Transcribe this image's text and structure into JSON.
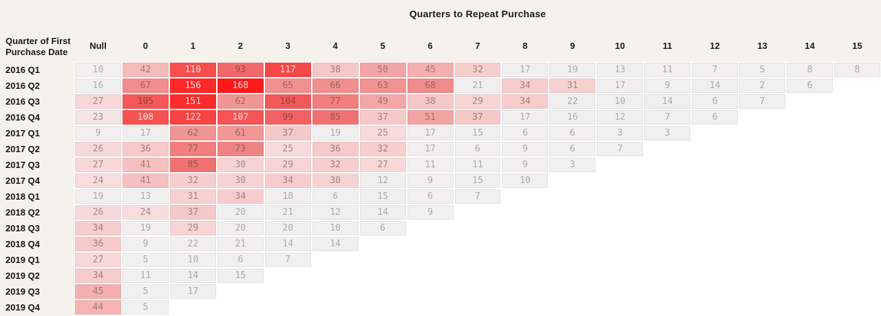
{
  "header": {
    "column_axis_title": "Quarters to Repeat Purchase",
    "row_axis_title": "Quarter of First Purchase Date"
  },
  "colors": {
    "page_background": "#f5f2ec",
    "table_background": "#ffffff",
    "header_text": "#1b1b1b",
    "row_label_text": "#141414",
    "cell_gap": "#ffffff",
    "grey_cell": "#f1f0f0",
    "max_red": "#ff1717"
  },
  "chart_data": {
    "type": "heatmap",
    "title": "Quarters to Repeat Purchase",
    "row_axis_label": "Quarter of First Purchase Date",
    "columns": [
      "Null",
      "0",
      "1",
      "2",
      "3",
      "4",
      "5",
      "6",
      "7",
      "8",
      "9",
      "10",
      "11",
      "12",
      "13",
      "14",
      "15"
    ],
    "rows": [
      {
        "label": "2016 Q1",
        "values": [
          10,
          42,
          110,
          93,
          117,
          38,
          50,
          45,
          32,
          17,
          19,
          13,
          11,
          7,
          5,
          8,
          8
        ]
      },
      {
        "label": "2016 Q2",
        "values": [
          16,
          67,
          156,
          168,
          65,
          66,
          63,
          68,
          21,
          34,
          31,
          17,
          9,
          14,
          2,
          6
        ]
      },
      {
        "label": "2016 Q3",
        "values": [
          27,
          105,
          151,
          62,
          104,
          77,
          49,
          38,
          29,
          34,
          22,
          10,
          14,
          6,
          7
        ]
      },
      {
        "label": "2016 Q4",
        "values": [
          23,
          108,
          122,
          107,
          99,
          85,
          37,
          51,
          37,
          17,
          16,
          12,
          7,
          6
        ]
      },
      {
        "label": "2017 Q1",
        "values": [
          9,
          17,
          62,
          61,
          37,
          19,
          25,
          17,
          15,
          6,
          6,
          3,
          3
        ]
      },
      {
        "label": "2017 Q2",
        "values": [
          26,
          36,
          77,
          73,
          25,
          36,
          32,
          17,
          6,
          9,
          6,
          7
        ]
      },
      {
        "label": "2017 Q3",
        "values": [
          27,
          41,
          85,
          30,
          29,
          32,
          27,
          11,
          11,
          9,
          3
        ]
      },
      {
        "label": "2017 Q4",
        "values": [
          24,
          41,
          32,
          30,
          34,
          30,
          12,
          9,
          15,
          10
        ]
      },
      {
        "label": "2018 Q1",
        "values": [
          19,
          13,
          31,
          34,
          18,
          6,
          15,
          6,
          7
        ]
      },
      {
        "label": "2018 Q2",
        "values": [
          26,
          24,
          37,
          20,
          21,
          12,
          14,
          9
        ]
      },
      {
        "label": "2018 Q3",
        "values": [
          34,
          19,
          29,
          20,
          20,
          10,
          6
        ]
      },
      {
        "label": "2018 Q4",
        "values": [
          36,
          9,
          22,
          21,
          14,
          14
        ]
      },
      {
        "label": "2019 Q1",
        "values": [
          27,
          5,
          10,
          6,
          7
        ]
      },
      {
        "label": "2019 Q2",
        "values": [
          34,
          11,
          14,
          15
        ]
      },
      {
        "label": "2019 Q3",
        "values": [
          45,
          5,
          17
        ]
      },
      {
        "label": "2019 Q4",
        "values": [
          44,
          5
        ]
      }
    ],
    "value_range": [
      2,
      168
    ],
    "grid_layout": "staircase",
    "legend": "none",
    "color_scale": {
      "stops": [
        [
          0,
          "#f1f0f0"
        ],
        [
          22,
          "#f0eeee"
        ],
        [
          24,
          "#f8dcdc"
        ],
        [
          32,
          "#f7cece"
        ],
        [
          40,
          "#f6c4c4"
        ],
        [
          46,
          "#f4aaaa"
        ],
        [
          58,
          "#f29a9a"
        ],
        [
          70,
          "#f08888"
        ],
        [
          85,
          "#ef7272"
        ],
        [
          100,
          "#f26161"
        ],
        [
          110,
          "#f74e4e"
        ],
        [
          130,
          "#fa3a3a"
        ],
        [
          155,
          "#fd2929"
        ],
        [
          170,
          "#ff1717"
        ]
      ],
      "grey_text_threshold": 22,
      "light_text_threshold": 107,
      "text_grey": "#aeabab",
      "text_dark_low": "#a68d8d",
      "text_dark_high": "#8f4343",
      "text_light": "#ffdede"
    }
  }
}
